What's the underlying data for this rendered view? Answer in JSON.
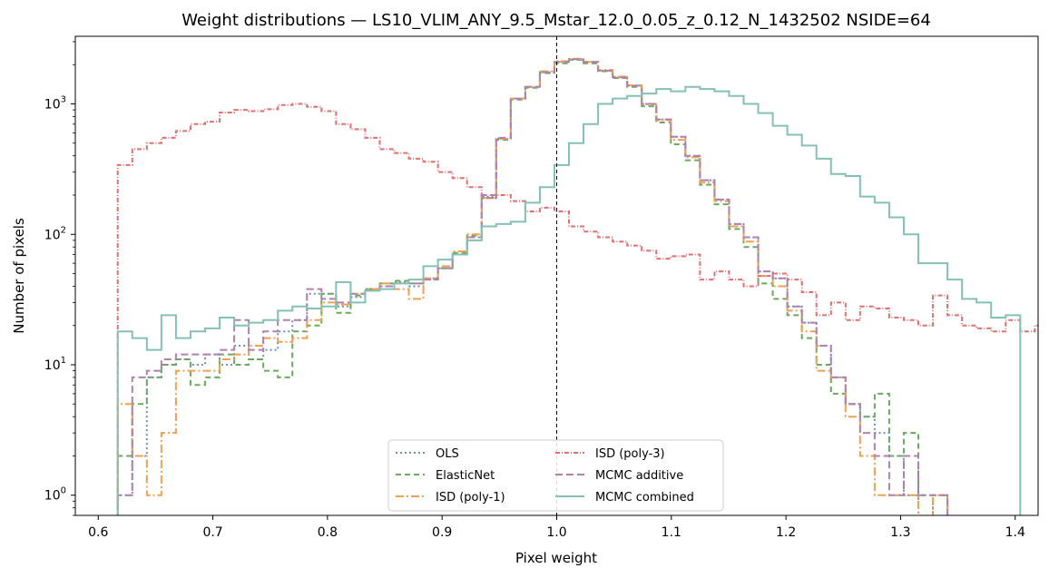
{
  "chart_data": {
    "type": "line",
    "title": "Weight distributions — LS10_VLIM_ANY_9.5_Mstar_12.0_0.05_z_0.12_N_1432502  NSIDE=64",
    "xlabel": "Pixel weight",
    "ylabel": "Number of pixels",
    "xlim": [
      0.58,
      1.42
    ],
    "ylim": [
      0.7,
      3300
    ],
    "yscale": "log",
    "x_ticks": [
      "0.6",
      "0.7",
      "0.8",
      "0.9",
      "1.0",
      "1.1",
      "1.2",
      "1.3",
      "1.4"
    ],
    "y_ticks": [
      {
        "value": 1,
        "base": "10",
        "exp": "0"
      },
      {
        "value": 10,
        "base": "10",
        "exp": "1"
      },
      {
        "value": 100,
        "base": "10",
        "exp": "2"
      },
      {
        "value": 1000,
        "base": "10",
        "exp": "3"
      }
    ],
    "reference_line": {
      "x": 1.0,
      "style": "dashed",
      "color": "#000000"
    },
    "legend_position": "lower-center",
    "bin_start": 0.617,
    "bin_width": 0.0127,
    "series": [
      {
        "name": "OLS",
        "color": "#6f8fb8",
        "dash": "2,3",
        "counts": [
          1,
          2,
          8,
          10,
          11,
          10,
          12,
          10,
          14,
          11,
          13,
          18,
          22,
          35,
          35,
          28,
          33,
          38,
          40,
          43,
          40,
          45,
          55,
          70,
          95,
          195,
          540,
          1100,
          1350,
          1750,
          2100,
          2200,
          2100,
          1800,
          1600,
          1380,
          1000,
          760,
          560,
          400,
          260,
          185,
          120,
          95,
          52,
          46,
          28,
          21,
          14,
          8,
          5,
          4,
          3,
          2,
          1,
          0.5,
          1,
          0.5,
          0.5,
          0.5,
          0.5
        ]
      },
      {
        "name": "ElasticNet",
        "color": "#6aaa5e",
        "dash": "6,4",
        "counts": [
          2,
          5,
          8,
          10,
          11,
          7,
          8,
          12,
          10,
          11,
          9,
          8,
          18,
          20,
          35,
          25,
          34,
          38,
          42,
          44,
          42,
          46,
          55,
          72,
          98,
          190,
          530,
          1080,
          1330,
          1720,
          2050,
          2180,
          2050,
          1780,
          1580,
          1350,
          960,
          720,
          490,
          370,
          240,
          170,
          110,
          80,
          42,
          32,
          24,
          16,
          10,
          6,
          5,
          4,
          6,
          2,
          3,
          1,
          1,
          0.5,
          0.5,
          0.5,
          0.5
        ]
      },
      {
        "name": "ISD (poly-1)",
        "color": "#f0a050",
        "dash": "9,3,2,3",
        "counts": [
          5,
          2,
          1,
          3,
          9,
          9,
          9,
          11,
          12,
          14,
          16,
          15,
          16,
          22,
          30,
          29,
          35,
          38,
          42,
          38,
          32,
          46,
          57,
          74,
          100,
          200,
          540,
          1100,
          1350,
          1780,
          2130,
          2220,
          2100,
          1820,
          1620,
          1390,
          990,
          750,
          530,
          390,
          250,
          180,
          115,
          88,
          48,
          40,
          26,
          18,
          9,
          8,
          4,
          2,
          1,
          1,
          1,
          0.5,
          1,
          0.5,
          0.5,
          0.5,
          0.5
        ]
      },
      {
        "name": "ISD (poly-3)",
        "color": "#e07070",
        "dash": "5,2,1,2",
        "counts": [
          340,
          450,
          500,
          550,
          620,
          700,
          730,
          860,
          900,
          880,
          910,
          980,
          1000,
          950,
          880,
          700,
          640,
          550,
          450,
          420,
          380,
          360,
          300,
          270,
          230,
          190,
          200,
          180,
          150,
          160,
          150,
          115,
          105,
          95,
          88,
          82,
          75,
          65,
          68,
          70,
          45,
          52,
          45,
          40,
          48,
          50,
          45,
          36,
          24,
          30,
          22,
          28,
          27,
          23,
          22,
          20,
          34,
          24,
          20,
          19,
          18,
          22,
          18,
          20,
          19
        ]
      },
      {
        "name": "MCMC additive",
        "color": "#b080b0",
        "dash": "8,4",
        "counts": [
          1,
          8,
          9,
          11,
          12,
          12,
          12,
          13,
          22,
          13,
          18,
          22,
          22,
          38,
          32,
          30,
          35,
          37,
          40,
          42,
          42,
          45,
          55,
          70,
          95,
          200,
          550,
          1100,
          1350,
          1750,
          2100,
          2200,
          2100,
          1800,
          1600,
          1380,
          1000,
          760,
          560,
          400,
          260,
          185,
          120,
          95,
          52,
          46,
          28,
          21,
          14,
          8,
          5,
          3,
          2,
          1,
          2,
          1,
          1,
          0.5,
          0.5,
          0.5,
          0.5
        ]
      },
      {
        "name": "MCMC combined",
        "color": "#85c0b5",
        "dash": "",
        "counts": [
          18,
          16,
          13,
          24,
          16,
          18,
          19,
          23,
          20,
          21,
          22,
          26,
          28,
          27,
          28,
          43,
          30,
          37,
          38,
          42,
          45,
          57,
          64,
          70,
          90,
          115,
          120,
          125,
          175,
          230,
          340,
          500,
          700,
          1000,
          1100,
          1150,
          1200,
          1300,
          1250,
          1350,
          1300,
          1250,
          1150,
          1000,
          850,
          680,
          580,
          480,
          380,
          290,
          280,
          195,
          175,
          135,
          100,
          60,
          60,
          45,
          32,
          30,
          23,
          24
        ]
      }
    ]
  }
}
